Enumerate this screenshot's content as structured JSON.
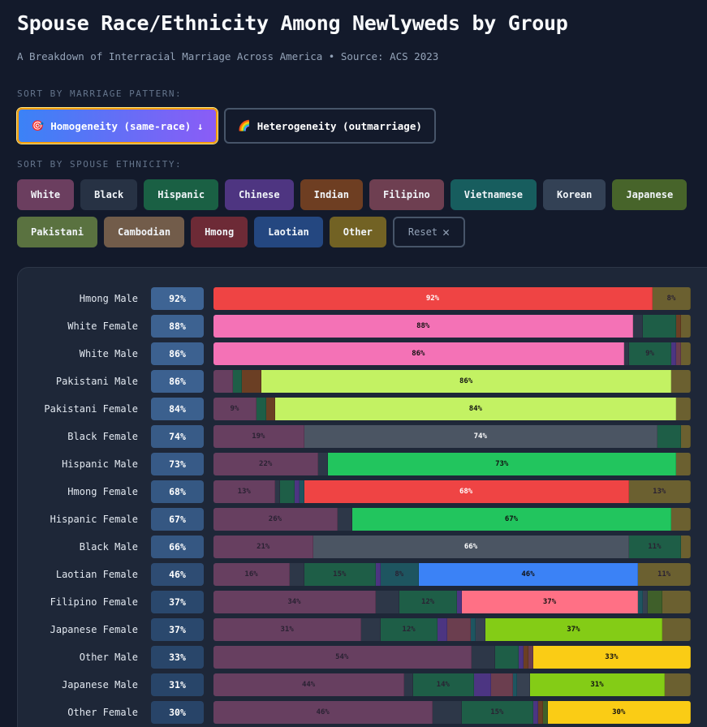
{
  "header": {
    "title": "Spouse Race/Ethnicity Among Newlyweds by Group",
    "subtitle": "A Breakdown of Interracial Marriage Across America • Source: ACS 2023"
  },
  "controls": {
    "pattern_label": "SORT BY MARRIAGE PATTERN:",
    "homogeneity": {
      "icon": "🎯",
      "label": "Homogeneity (same-race) ↓",
      "active": true
    },
    "heterogeneity": {
      "icon": "🌈",
      "label": "Heterogeneity (outmarriage)",
      "active": false
    },
    "ethnicity_label": "SORT BY SPOUSE ETHNICITY:",
    "reset_label": "Reset",
    "reset_icon": "✕"
  },
  "colors": {
    "accent": "#f59e0b",
    "badge": "#3d6494"
  },
  "chart_data": {
    "type": "stacked-bar-horizontal",
    "title": "Spouse Race/Ethnicity Among Newlyweds by Group",
    "categories": [
      "White",
      "Black",
      "Hispanic",
      "Chinese",
      "Indian",
      "Filipino",
      "Vietnamese",
      "Korean",
      "Japanese",
      "Pakistani",
      "Cambodian",
      "Hmong",
      "Laotian",
      "Other"
    ],
    "category_colors": [
      "#673f60",
      "#2d3748",
      "#1e5e47",
      "#4c3582",
      "#6b3f24",
      "#6b3e4f",
      "#1e5560",
      "#374151",
      "#3f5f2a",
      "#5b7040",
      "#6e5a4a",
      "#6e2a35",
      "#254a80",
      "#6b6030"
    ],
    "highlight_colors": {
      "White": "#f472b6",
      "Black": "#4b5563",
      "Hispanic": "#22c55e",
      "Pakistani": "#c3f263",
      "Hmong": "#ef4444",
      "Laotian": "#3b82f6",
      "Filipino": "#ff7085",
      "Japanese": "#84cc16",
      "Other": "#facc15"
    },
    "unit": "%",
    "groups": [
      {
        "label": "Hmong Male",
        "own": "Hmong",
        "homogeneity": "92%",
        "values": {
          "Hmong": 92,
          "Other": 8
        }
      },
      {
        "label": "White Female",
        "own": "White",
        "homogeneity": "88%",
        "values": {
          "White": 88,
          "Black": 2,
          "Hispanic": 7,
          "Indian": 1,
          "Other": 2
        }
      },
      {
        "label": "White Male",
        "own": "White",
        "homogeneity": "86%",
        "values": {
          "White": 86,
          "Black": 1,
          "Hispanic": 9,
          "Chinese": 1,
          "Filipino": 1,
          "Other": 2
        }
      },
      {
        "label": "Pakistani Male",
        "own": "Pakistani",
        "homogeneity": "86%",
        "values": {
          "White": 4,
          "Hispanic": 2,
          "Indian": 4,
          "Pakistani": 86,
          "Other": 4
        }
      },
      {
        "label": "Pakistani Female",
        "own": "Pakistani",
        "homogeneity": "84%",
        "values": {
          "White": 9,
          "Hispanic": 2,
          "Indian": 2,
          "Pakistani": 84,
          "Other": 3
        }
      },
      {
        "label": "Black Female",
        "own": "Black",
        "homogeneity": "74%",
        "values": {
          "White": 19,
          "Black": 74,
          "Hispanic": 5,
          "Other": 2
        }
      },
      {
        "label": "Hispanic Male",
        "own": "Hispanic",
        "homogeneity": "73%",
        "values": {
          "White": 22,
          "Black": 2,
          "Hispanic": 73,
          "Other": 3
        }
      },
      {
        "label": "Hmong Female",
        "own": "Hmong",
        "homogeneity": "68%",
        "values": {
          "White": 13,
          "Black": 1,
          "Hispanic": 3,
          "Chinese": 1,
          "Vietnamese": 1,
          "Hmong": 68,
          "Other": 13
        }
      },
      {
        "label": "Hispanic Female",
        "own": "Hispanic",
        "homogeneity": "67%",
        "values": {
          "White": 26,
          "Black": 3,
          "Hispanic": 67,
          "Other": 4
        }
      },
      {
        "label": "Black Male",
        "own": "Black",
        "homogeneity": "66%",
        "values": {
          "White": 21,
          "Black": 66,
          "Hispanic": 11,
          "Other": 2
        }
      },
      {
        "label": "Laotian Female",
        "own": "Laotian",
        "homogeneity": "46%",
        "values": {
          "White": 16,
          "Black": 3,
          "Hispanic": 15,
          "Chinese": 1,
          "Vietnamese": 8,
          "Laotian": 46,
          "Other": 11
        }
      },
      {
        "label": "Filipino Female",
        "own": "Filipino",
        "homogeneity": "37%",
        "values": {
          "White": 34,
          "Black": 5,
          "Hispanic": 12,
          "Chinese": 1,
          "Filipino": 37,
          "Vietnamese": 1,
          "Korean": 1,
          "Japanese": 3,
          "Other": 6
        }
      },
      {
        "label": "Japanese Female",
        "own": "Japanese",
        "homogeneity": "37%",
        "values": {
          "White": 31,
          "Black": 4,
          "Hispanic": 12,
          "Chinese": 2,
          "Filipino": 5,
          "Vietnamese": 1,
          "Korean": 2,
          "Japanese": 37,
          "Other": 6
        }
      },
      {
        "label": "Other Male",
        "own": "Other",
        "homogeneity": "33%",
        "values": {
          "White": 54,
          "Black": 5,
          "Hispanic": 5,
          "Chinese": 1,
          "Indian": 1,
          "Filipino": 1,
          "Other": 33
        }
      },
      {
        "label": "Japanese Male",
        "own": "Japanese",
        "homogeneity": "31%",
        "values": {
          "White": 44,
          "Black": 2,
          "Hispanic": 14,
          "Chinese": 4,
          "Filipino": 5,
          "Vietnamese": 1,
          "Korean": 3,
          "Japanese": 31,
          "Other": 6
        }
      },
      {
        "label": "Other Female",
        "own": "Other",
        "homogeneity": "30%",
        "values": {
          "White": 46,
          "Black": 6,
          "Hispanic": 15,
          "Chinese": 1,
          "Indian": 1,
          "Japanese": 1,
          "Other": 30
        }
      }
    ]
  }
}
